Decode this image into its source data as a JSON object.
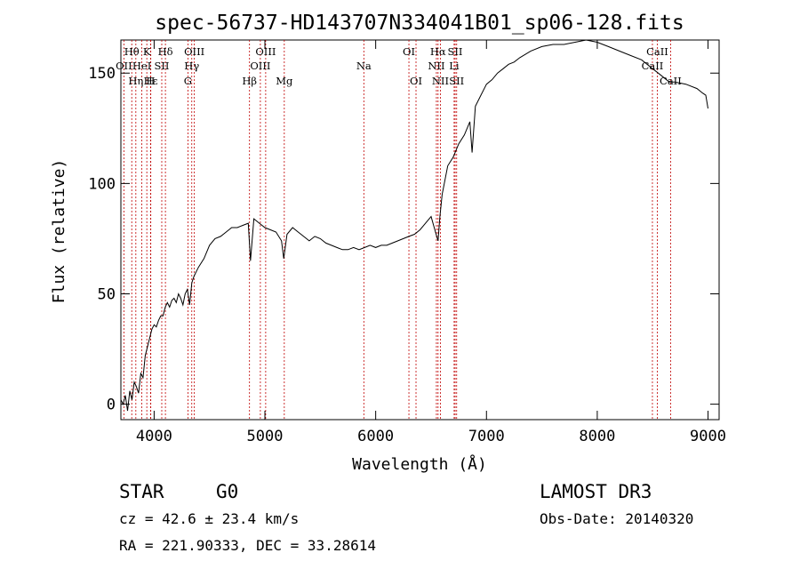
{
  "chart_data": {
    "type": "line",
    "title": "spec-56737-HD143707N334041B01_sp06-128.fits",
    "xlabel": "Wavelength (Å)",
    "ylabel": "Flux (relative)",
    "xlim": [
      3700,
      9100
    ],
    "ylim": [
      -7,
      165
    ],
    "x_ticks": [
      4000,
      5000,
      6000,
      7000,
      8000,
      9000
    ],
    "y_ticks": [
      0,
      50,
      100,
      150
    ],
    "series": [
      {
        "name": "spectrum",
        "x": [
          3700,
          3720,
          3740,
          3760,
          3780,
          3800,
          3820,
          3840,
          3860,
          3880,
          3900,
          3920,
          3940,
          3960,
          3980,
          4000,
          4020,
          4040,
          4060,
          4080,
          4100,
          4120,
          4140,
          4160,
          4180,
          4200,
          4220,
          4240,
          4260,
          4280,
          4300,
          4320,
          4340,
          4360,
          4380,
          4400,
          4450,
          4500,
          4550,
          4600,
          4650,
          4700,
          4750,
          4800,
          4850,
          4870,
          4900,
          4950,
          5000,
          5050,
          5100,
          5150,
          5170,
          5200,
          5250,
          5300,
          5350,
          5400,
          5450,
          5500,
          5550,
          5600,
          5650,
          5700,
          5750,
          5800,
          5850,
          5900,
          5950,
          6000,
          6050,
          6100,
          6150,
          6200,
          6250,
          6300,
          6350,
          6400,
          6450,
          6500,
          6540,
          6563,
          6580,
          6600,
          6650,
          6700,
          6750,
          6800,
          6850,
          6870,
          6900,
          6950,
          7000,
          7050,
          7100,
          7150,
          7200,
          7250,
          7300,
          7400,
          7500,
          7600,
          7700,
          7800,
          7900,
          8000,
          8100,
          8200,
          8300,
          8400,
          8500,
          8550,
          8600,
          8650,
          8700,
          8800,
          8900,
          8950,
          8980,
          9000
        ],
        "y": [
          2,
          0,
          4,
          -3,
          6,
          2,
          10,
          8,
          5,
          14,
          12,
          22,
          26,
          30,
          34,
          36,
          35,
          38,
          40,
          40,
          44,
          46,
          44,
          47,
          48,
          46,
          50,
          48,
          45,
          50,
          52,
          45,
          55,
          58,
          60,
          62,
          66,
          72,
          75,
          76,
          78,
          80,
          80,
          81,
          82,
          65,
          84,
          82,
          80,
          79,
          78,
          74,
          66,
          77,
          80,
          78,
          76,
          74,
          76,
          75,
          73,
          72,
          71,
          70,
          70,
          71,
          70,
          71,
          72,
          71,
          72,
          72,
          73,
          74,
          75,
          76,
          77,
          79,
          82,
          85,
          78,
          74,
          85,
          95,
          108,
          112,
          118,
          122,
          128,
          114,
          135,
          140,
          145,
          147,
          150,
          152,
          154,
          155,
          157,
          160,
          162,
          163,
          163,
          164,
          165,
          164,
          162,
          160,
          158,
          156,
          152,
          150,
          148,
          146,
          146,
          145,
          143,
          141,
          140,
          134
        ]
      }
    ],
    "lines_top": [
      {
        "label": "Hθ",
        "x": 3798
      },
      {
        "label": "K",
        "x": 3934
      },
      {
        "label": "Hδ",
        "x": 4102
      },
      {
        "label": "OIII",
        "x": 4363
      },
      {
        "label": "OIII",
        "x": 5007
      },
      {
        "label": "OI",
        "x": 6300
      },
      {
        "label": "Hα",
        "x": 6563
      },
      {
        "label": "SII",
        "x": 6717
      },
      {
        "label": "CaII",
        "x": 8542
      }
    ],
    "lines_mid": [
      {
        "label": "OII",
        "x": 3727
      },
      {
        "label": "HeI",
        "x": 3889
      },
      {
        "label": "SII",
        "x": 4069
      },
      {
        "label": "Hγ",
        "x": 4340
      },
      {
        "label": "OIII",
        "x": 4959
      },
      {
        "label": "Na",
        "x": 5893
      },
      {
        "label": "NII",
        "x": 6548
      },
      {
        "label": "Li",
        "x": 6708
      },
      {
        "label": "CaII",
        "x": 8498
      }
    ],
    "lines_low": [
      {
        "label": "Hε",
        "x": 3970
      },
      {
        "label": "Hη",
        "x": 3835
      },
      {
        "label": "H",
        "x": 3968
      },
      {
        "label": "G",
        "x": 4305
      },
      {
        "label": "Hβ",
        "x": 4861
      },
      {
        "label": "Mg",
        "x": 5175
      },
      {
        "label": "OI",
        "x": 6364
      },
      {
        "label": "NII",
        "x": 6584
      },
      {
        "label": "SII",
        "x": 6731
      },
      {
        "label": "CaII",
        "x": 8662
      }
    ]
  },
  "info": {
    "class_label": "STAR",
    "subclass_label": "G0",
    "survey": "LAMOST DR3",
    "redshift_line": "cz = 42.6 ± 23.4 km/s",
    "obs_date": "Obs-Date: 20140320",
    "coords": "RA = 221.90333, DEC =  33.28614"
  },
  "colors": {
    "line_markers": "#c00000",
    "spectrum": "#000000"
  }
}
